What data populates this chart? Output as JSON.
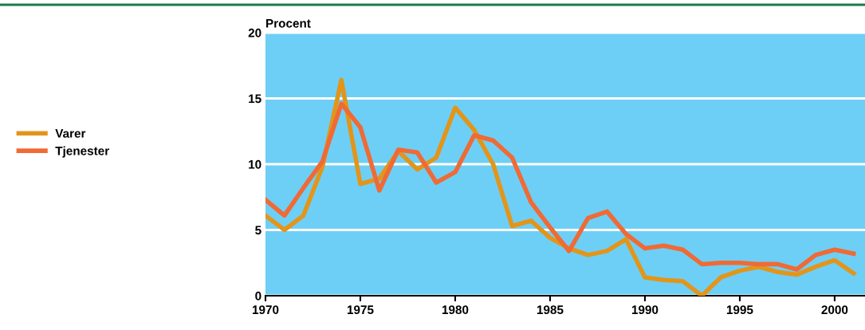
{
  "chart_data": {
    "type": "line",
    "ylabel": "Procent",
    "x": [
      1970,
      1971,
      1972,
      1973,
      1974,
      1975,
      1976,
      1977,
      1978,
      1979,
      1980,
      1981,
      1982,
      1983,
      1984,
      1985,
      1986,
      1987,
      1988,
      1989,
      1990,
      1991,
      1992,
      1993,
      1994,
      1995,
      1996,
      1997,
      1998,
      1999,
      2000,
      2001
    ],
    "series": [
      {
        "name": "Varer",
        "color": "#e3951a",
        "values": [
          6.1,
          5.0,
          6.1,
          9.8,
          16.4,
          8.5,
          8.9,
          11.0,
          9.6,
          10.5,
          14.3,
          12.6,
          10.0,
          5.3,
          5.7,
          4.4,
          3.6,
          3.1,
          3.4,
          4.3,
          1.4,
          1.2,
          1.1,
          0.0,
          1.4,
          1.9,
          2.2,
          1.8,
          1.6,
          2.2,
          2.7,
          1.7
        ]
      },
      {
        "name": "Tjenester",
        "color": "#f06a35",
        "values": [
          7.3,
          6.1,
          8.2,
          10.2,
          14.6,
          12.8,
          8.0,
          11.1,
          10.9,
          8.6,
          9.4,
          12.2,
          11.8,
          10.5,
          7.1,
          5.2,
          3.4,
          5.9,
          6.4,
          4.7,
          3.6,
          3.8,
          3.5,
          2.4,
          2.5,
          2.5,
          2.4,
          2.4,
          2.0,
          3.1,
          3.5,
          3.2
        ]
      }
    ],
    "xlim": [
      1970,
      2001.6
    ],
    "xticks": [
      1970,
      1975,
      1980,
      1985,
      1990,
      1995,
      2000
    ],
    "ylim": [
      0,
      20
    ],
    "yticks": [
      0,
      5,
      10,
      15,
      20
    ],
    "grid": "y",
    "legend": "left",
    "marker": "none",
    "line_style": "solid"
  }
}
